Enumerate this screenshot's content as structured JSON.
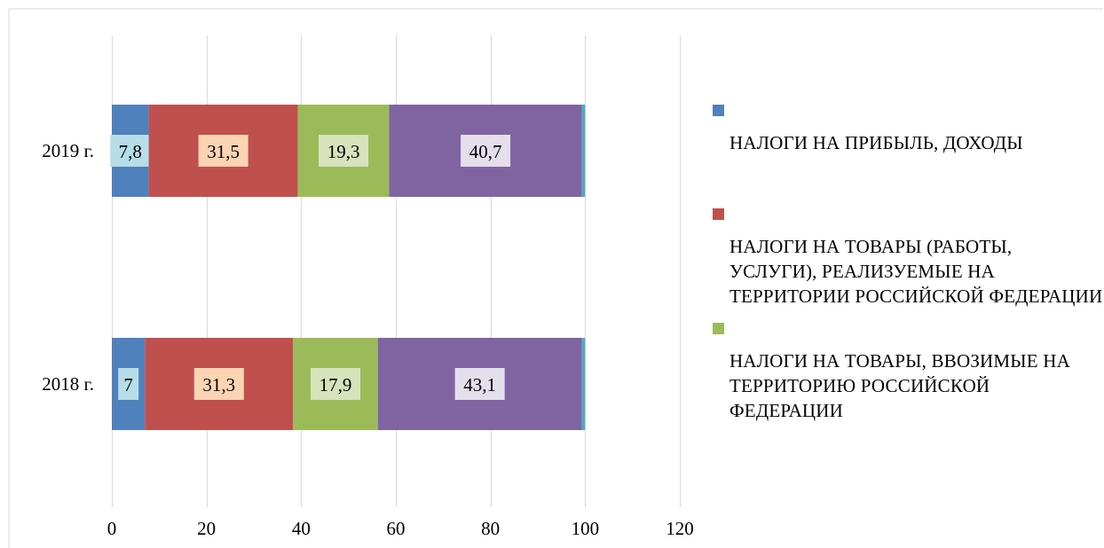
{
  "chart_data": {
    "type": "bar",
    "orientation": "horizontal",
    "stacked": true,
    "categories": [
      "2019 г.",
      "2018 г."
    ],
    "series": [
      {
        "name": "НАЛОГИ НА ПРИБЫЛЬ, ДОХОДЫ",
        "values": [
          7.8,
          7
        ],
        "color": "#4f81bd",
        "label_bg": "#b7dde8"
      },
      {
        "name": "НАЛОГИ НА ТОВАРЫ (РАБОТЫ, УСЛУГИ), РЕАЛИЗУЕМЫЕ НА ТЕРРИТОРИИ РОССИЙСКОЙ ФЕДЕРАЦИИ",
        "values": [
          31.5,
          31.3
        ],
        "color": "#c0504d",
        "label_bg": "#fbd4b4"
      },
      {
        "name": "НАЛОГИ НА ТОВАРЫ, ВВОЗИМЫЕ НА ТЕРРИТОРИЮ РОССИЙСКОЙ ФЕДЕРАЦИИ",
        "values": [
          19.3,
          17.9
        ],
        "color": "#9bbb59",
        "label_bg": "#d6e3bc"
      },
      {
        "values": [
          40.7,
          43.1
        ],
        "color": "#8064a2",
        "label_bg": "#e5dfec"
      },
      {
        "values": [
          0.7,
          0.7
        ],
        "color": "#4bacc6"
      }
    ],
    "data_labels": [
      [
        "7,8",
        "31,5",
        "19,3",
        "40,7"
      ],
      [
        "7",
        "31,3",
        "17,9",
        "43,1"
      ]
    ],
    "xlim": [
      0,
      120
    ],
    "x_ticks": [
      "0",
      "20",
      "40",
      "60",
      "80",
      "100",
      "120"
    ],
    "grid": true,
    "legend_position": "right"
  }
}
